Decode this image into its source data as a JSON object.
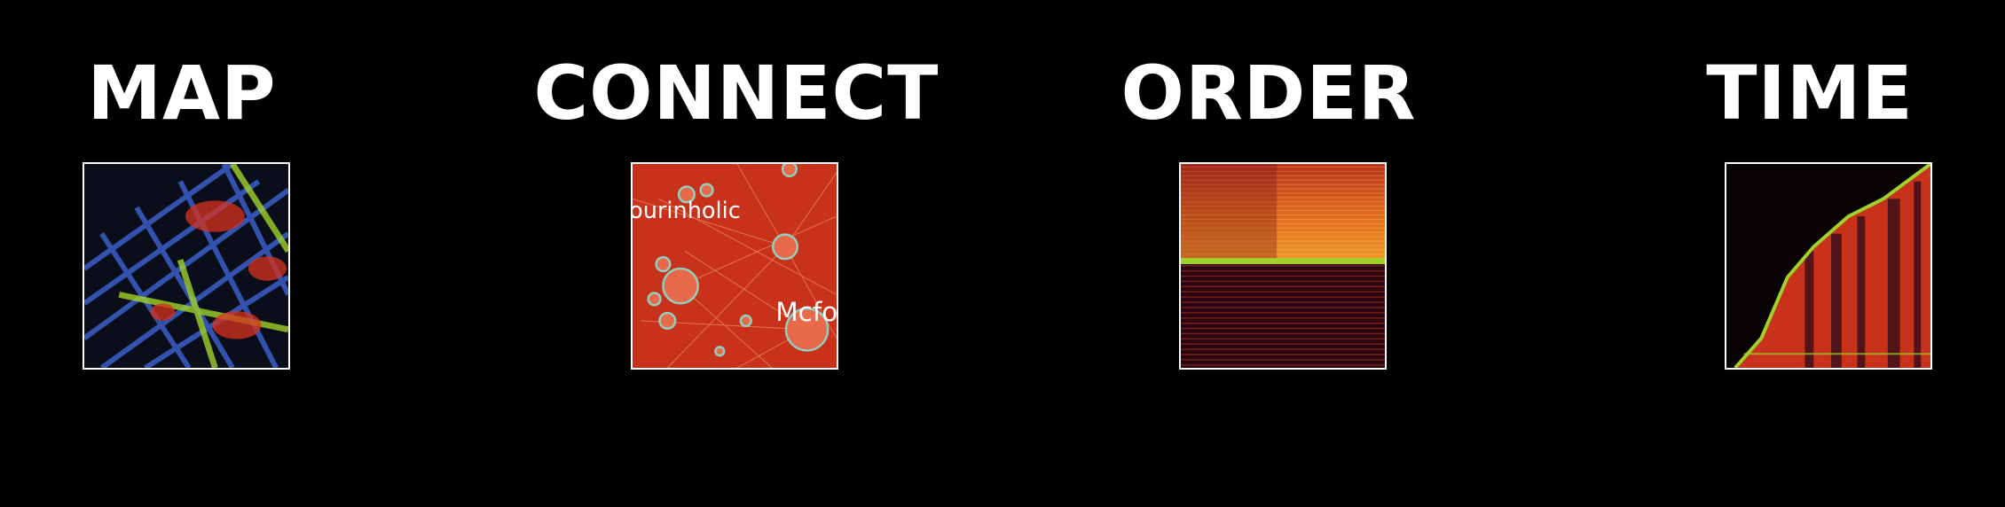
{
  "panels": [
    {
      "title": "MAP",
      "thumbnail": "map-visualization"
    },
    {
      "title": "CONNECT",
      "thumbnail": "network-graph-visualization",
      "labels": [
        "ourinholic",
        "Mcfo"
      ]
    },
    {
      "title": "ORDER",
      "thumbnail": "ordered-heatmap-visualization"
    },
    {
      "title": "TIME",
      "thumbnail": "time-heatmap-visualization"
    }
  ],
  "colors": {
    "background": "#000000",
    "text": "#ffffff",
    "heat_red": "#d8321c",
    "heat_orange": "#e8781e",
    "accent_green": "#9fd22a",
    "map_blue": "#3a5fc8"
  }
}
